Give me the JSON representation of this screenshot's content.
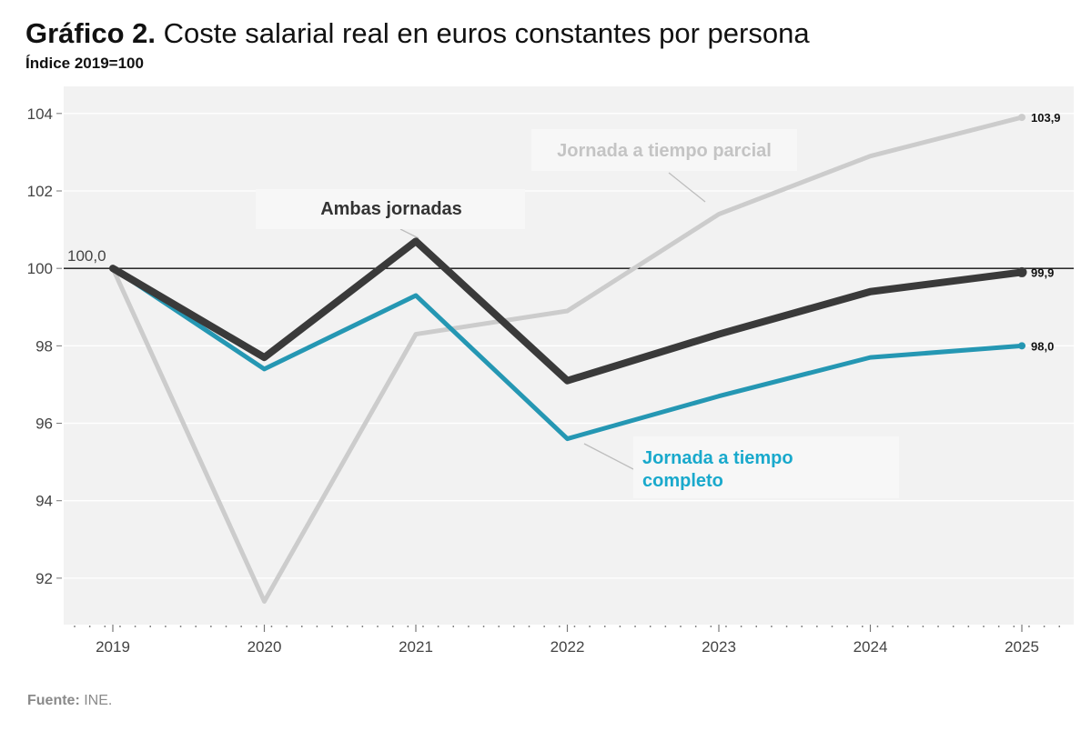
{
  "header": {
    "title_bold": "Gráfico 2.",
    "title_rest": "Coste salarial real en euros constantes por persona",
    "subtitle": "Índice 2019=100"
  },
  "footer": {
    "source_label": "Fuente:",
    "source_value": "INE."
  },
  "chart_data": {
    "type": "line",
    "title": "Coste salarial real en euros constantes por persona",
    "subtitle": "Índice 2019=100",
    "x": [
      "2019",
      "2020",
      "2021",
      "2022",
      "2023",
      "2024",
      "2025"
    ],
    "ylim": [
      90.8,
      104.7
    ],
    "yticks": [
      92,
      94,
      96,
      98,
      100,
      102,
      104
    ],
    "reference_line": 100,
    "start_label": "100,0",
    "series": [
      {
        "name": "Jornada a tiempo parcial",
        "color": "#cccccc",
        "values": [
          100.0,
          91.4,
          98.3,
          98.9,
          101.4,
          102.9,
          103.9
        ],
        "end_label": "103,9"
      },
      {
        "name": "Jornada a tiempo completo",
        "color": "#2597b3",
        "label_color": "#19a9cc",
        "values": [
          100.0,
          97.4,
          99.3,
          95.6,
          96.7,
          97.7,
          98.0
        ],
        "end_label": "98,0"
      },
      {
        "name": "Ambas jornadas",
        "color": "#3a3a3a",
        "values": [
          100.0,
          97.7,
          100.7,
          97.1,
          98.3,
          99.4,
          99.9
        ],
        "end_label": "99,9"
      }
    ],
    "annotations": [
      {
        "text": "Jornada a tiempo parcial",
        "series": "Jornada a tiempo parcial"
      },
      {
        "text": "Ambas jornadas",
        "series": "Ambas jornadas"
      },
      {
        "text": "Jornada a tiempo completo",
        "series": "Jornada a tiempo completo"
      }
    ]
  }
}
